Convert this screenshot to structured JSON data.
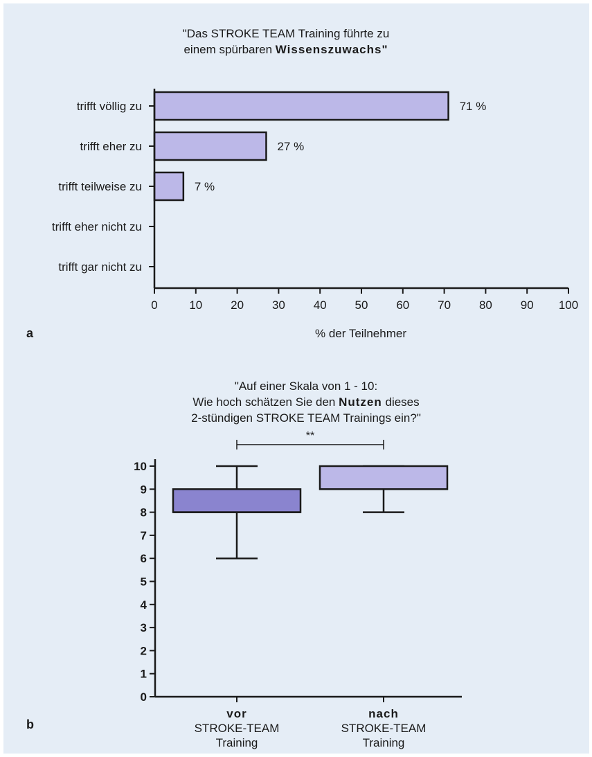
{
  "colors": {
    "panel_background": "#e5edf6",
    "bar_fill": "#bcb8e8",
    "box_vor_fill": "#8a84cf",
    "box_nach_fill": "#bcb8e8",
    "ink": "#1a1a1a"
  },
  "chart_data": [
    {
      "panel_label": "a",
      "type": "bar",
      "orientation": "horizontal",
      "title_lines": [
        {
          "parts": [
            {
              "text": "\"Das STROKE TEAM Training führte zu",
              "bold": false
            }
          ]
        },
        {
          "parts": [
            {
              "text": "einem spürbaren ",
              "bold": false
            },
            {
              "text": "Wissenszuwachs\"",
              "bold": true
            }
          ]
        }
      ],
      "categories": [
        "trifft völlig zu",
        "trifft eher zu",
        "trifft teilweise zu",
        "trifft eher nicht zu",
        "trifft gar nicht zu"
      ],
      "values": [
        71,
        27,
        7,
        0,
        0
      ],
      "data_labels": [
        "71 %",
        "27 %",
        "7 %",
        "",
        ""
      ],
      "xlabel": "% der Teilnehmer",
      "xlim": [
        0,
        100
      ],
      "xticks": [
        0,
        10,
        20,
        30,
        40,
        50,
        60,
        70,
        80,
        90,
        100
      ],
      "grid": false
    },
    {
      "panel_label": "b",
      "type": "box",
      "title_lines": [
        {
          "parts": [
            {
              "text": "\"Auf einer Skala von 1 - 10:",
              "bold": false
            }
          ]
        },
        {
          "parts": [
            {
              "text": "Wie hoch schätzen Sie den ",
              "bold": false
            },
            {
              "text": "Nutzen",
              "bold": true
            },
            {
              "text": " dieses",
              "bold": false
            }
          ]
        },
        {
          "parts": [
            {
              "text": "2-stündigen STROKE TEAM Trainings ein?\"",
              "bold": false
            }
          ]
        }
      ],
      "groups": [
        {
          "label_bold": "vor",
          "label_lines": [
            "STROKE-TEAM",
            "Training"
          ],
          "min": 6,
          "q1": 8,
          "median": 8,
          "q3": 9,
          "max": 10
        },
        {
          "label_bold": "nach",
          "label_lines": [
            "STROKE-TEAM",
            "Training"
          ],
          "min": 8,
          "q1": 9,
          "median": 9,
          "q3": 10,
          "max": 10
        }
      ],
      "ylim": [
        0,
        10
      ],
      "yticks": [
        0,
        1,
        2,
        3,
        4,
        5,
        6,
        7,
        8,
        9,
        10
      ],
      "significance": "**",
      "grid": false
    }
  ]
}
